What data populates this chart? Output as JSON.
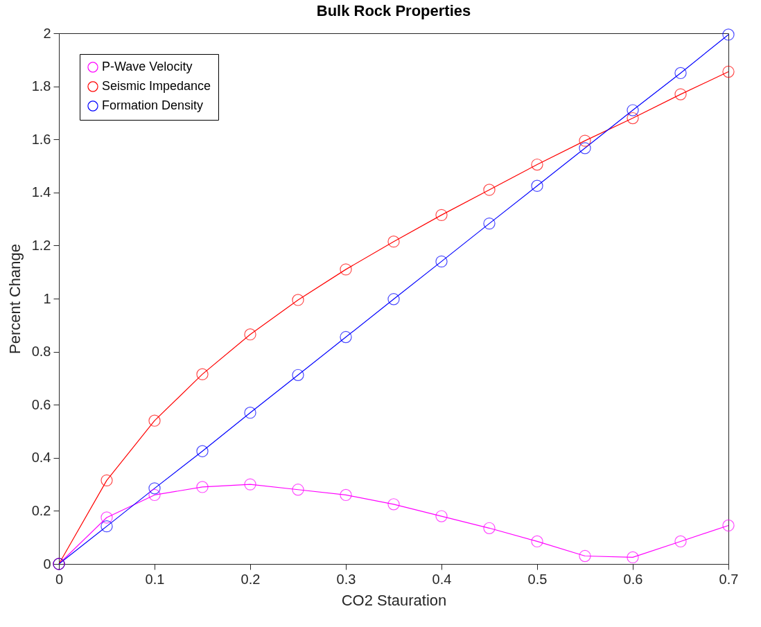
{
  "chart_data": {
    "type": "line",
    "title": "Bulk Rock Properties",
    "xlabel": "CO2 Stauration",
    "ylabel": "Percent Change",
    "x": [
      0,
      0.05,
      0.1,
      0.15,
      0.2,
      0.25,
      0.3,
      0.35,
      0.4,
      0.45,
      0.5,
      0.55,
      0.6,
      0.65,
      0.7
    ],
    "series": [
      {
        "name": "P-Wave Velocity",
        "color": "#ff00ff",
        "values": [
          0,
          0.175,
          0.26,
          0.29,
          0.3,
          0.28,
          0.26,
          0.225,
          0.18,
          0.135,
          0.085,
          0.03,
          0.025,
          0.085,
          0.145
        ]
      },
      {
        "name": "Seismic Impedance",
        "color": "#ff0000",
        "values": [
          0,
          0.315,
          0.54,
          0.715,
          0.865,
          0.995,
          1.11,
          1.215,
          1.315,
          1.41,
          1.505,
          1.595,
          1.68,
          1.77,
          1.855
        ]
      },
      {
        "name": "Formation Density",
        "color": "#0000ff",
        "values": [
          0,
          0.142,
          0.285,
          0.425,
          0.57,
          0.712,
          0.855,
          0.998,
          1.14,
          1.283,
          1.425,
          1.567,
          1.71,
          1.85,
          1.995
        ]
      }
    ],
    "xlim": [
      0,
      0.7
    ],
    "xticks": [
      0,
      0.1,
      0.2,
      0.3,
      0.4,
      0.5,
      0.6,
      0.7
    ],
    "ylim": [
      0,
      2
    ],
    "yticks": [
      0,
      0.2,
      0.4,
      0.6,
      0.8,
      1,
      1.2,
      1.4,
      1.6,
      1.8,
      2
    ],
    "grid": false,
    "legend": "top left",
    "marker": "circle",
    "line_style": "solid"
  }
}
